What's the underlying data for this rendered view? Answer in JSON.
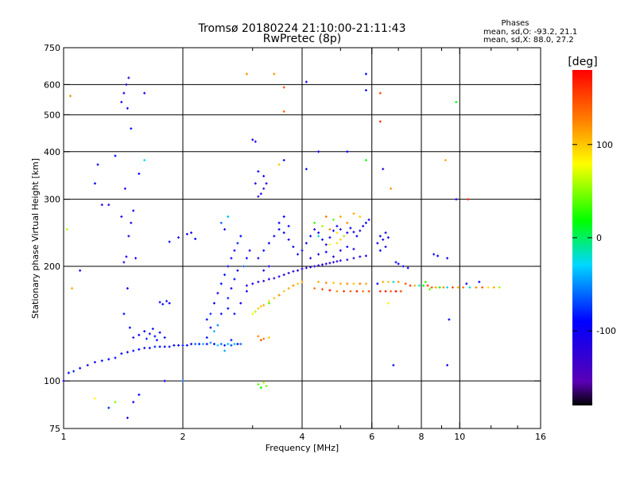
{
  "header": {
    "title_line1": "Tromsø 20180224 21:10:00-21:11:43",
    "title_line2": "RwPretec (8p)"
  },
  "stats": {
    "heading": "Phases",
    "line_o": "mean, sd,O:  -93.2, 21.1",
    "line_x": "mean, sd,X:  88.0, 27.2"
  },
  "colorbar": {
    "unit": "[deg]",
    "tick_labels": [
      "100",
      "0",
      "-100"
    ],
    "tick_values": [
      100,
      0,
      -100
    ],
    "range": [
      -180,
      180
    ],
    "palette": "rainbow (black-purple-blue-cyan-green-yellow-orange-red)"
  },
  "chart_data": {
    "type": "scatter",
    "xlabel": "Frequency [MHz]",
    "ylabel": "Stationary phase Virtual Height [km]",
    "xscale": "log",
    "yscale": "log",
    "xlim": [
      1,
      16
    ],
    "ylim": [
      75,
      750
    ],
    "x_ticks": [
      1,
      2,
      4,
      6,
      8,
      10,
      16
    ],
    "x_tick_labels": [
      "1",
      "2",
      "4",
      "6",
      "8",
      "10",
      "16"
    ],
    "x_minor_ticks": [
      3,
      5,
      7,
      9,
      12,
      14
    ],
    "x_grid": [
      2,
      4,
      6,
      8,
      10
    ],
    "y_ticks": [
      75,
      100,
      200,
      300,
      400,
      500,
      600,
      750
    ],
    "y_tick_labels": [
      "75",
      "100",
      "200",
      "300",
      "400",
      "500",
      "600",
      "750"
    ],
    "y_grid": [
      100,
      200,
      300,
      400,
      500,
      600
    ],
    "grid": true,
    "color_value": "phase [deg]",
    "points": [
      [
        1.03,
        105,
        -90
      ],
      [
        1.06,
        106,
        -80
      ],
      [
        1.1,
        108,
        -90
      ],
      [
        1.15,
        110,
        -95
      ],
      [
        1.2,
        112,
        -100
      ],
      [
        1.25,
        113,
        -85
      ],
      [
        1.3,
        114,
        -95
      ],
      [
        1.35,
        115,
        -100
      ],
      [
        1.4,
        118,
        -90
      ],
      [
        1.45,
        119,
        -95
      ],
      [
        1.5,
        120,
        -85
      ],
      [
        1.55,
        121,
        -95
      ],
      [
        1.6,
        122,
        -100
      ],
      [
        1.65,
        122,
        -90
      ],
      [
        1.7,
        123,
        -80
      ],
      [
        1.75,
        123,
        -95
      ],
      [
        1.8,
        123,
        -100
      ],
      [
        1.85,
        123,
        -85
      ],
      [
        1.9,
        124,
        -95
      ],
      [
        1.95,
        124,
        -90
      ],
      [
        2.0,
        124,
        -80
      ],
      [
        2.05,
        124,
        -100
      ],
      [
        2.1,
        125,
        -90
      ],
      [
        2.15,
        125,
        -60
      ],
      [
        2.2,
        125,
        -85
      ],
      [
        2.25,
        125,
        -40
      ],
      [
        2.3,
        125,
        -95
      ],
      [
        2.35,
        126,
        -50
      ],
      [
        2.4,
        125,
        -90
      ],
      [
        2.45,
        124,
        -30
      ],
      [
        2.5,
        125,
        -60
      ],
      [
        2.55,
        124,
        -80
      ],
      [
        2.6,
        125,
        -40
      ],
      [
        2.65,
        124,
        -70
      ],
      [
        2.7,
        125,
        -35
      ],
      [
        2.75,
        125,
        -90
      ],
      [
        2.8,
        125,
        -60
      ],
      [
        1.5,
        130,
        -100
      ],
      [
        1.55,
        132,
        -95
      ],
      [
        1.6,
        135,
        -90
      ],
      [
        1.65,
        133,
        -100
      ],
      [
        1.7,
        131,
        -85
      ],
      [
        1.75,
        134,
        -95
      ],
      [
        1.8,
        130,
        -90
      ],
      [
        1.68,
        137,
        -100
      ],
      [
        1.72,
        128,
        -95
      ],
      [
        1.62,
        129,
        -80
      ],
      [
        1.75,
        161,
        -95
      ],
      [
        1.78,
        159,
        -90
      ],
      [
        1.82,
        162,
        -100
      ],
      [
        1.85,
        160,
        -95
      ],
      [
        1.42,
        205,
        -110
      ],
      [
        1.44,
        212,
        -105
      ],
      [
        1.46,
        240,
        -120
      ],
      [
        1.4,
        270,
        -110
      ],
      [
        1.45,
        175,
        -100
      ],
      [
        1.42,
        150,
        -90
      ],
      [
        1.47,
        138,
        -95
      ],
      [
        1.43,
        320,
        -100
      ],
      [
        1.48,
        260,
        -115
      ],
      [
        1.4,
        540,
        -110
      ],
      [
        1.42,
        570,
        -100
      ],
      [
        1.44,
        600,
        -120
      ],
      [
        1.46,
        625,
        -110
      ],
      [
        1.45,
        520,
        -100
      ],
      [
        1.2,
        330,
        -90
      ],
      [
        1.25,
        290,
        -100
      ],
      [
        1.22,
        370,
        -95
      ],
      [
        1.3,
        290,
        -110
      ],
      [
        1.35,
        390,
        -90
      ],
      [
        1.5,
        280,
        -100
      ],
      [
        1.55,
        350,
        -90
      ],
      [
        1.52,
        210,
        -100
      ],
      [
        1.48,
        460,
        -90
      ],
      [
        1.6,
        380,
        -30
      ],
      [
        1.6,
        570,
        -100
      ],
      [
        1.1,
        195,
        -100
      ],
      [
        1.45,
        80,
        -110
      ],
      [
        1.5,
        88,
        -100
      ],
      [
        1.55,
        92,
        -90
      ],
      [
        1.3,
        85,
        -80
      ],
      [
        1.35,
        88,
        50
      ],
      [
        1.8,
        100,
        -100
      ],
      [
        2.0,
        100,
        -60
      ],
      [
        1.85,
        232,
        -90
      ],
      [
        1.95,
        238,
        -100
      ],
      [
        2.05,
        243,
        -95
      ],
      [
        2.1,
        245,
        -110
      ],
      [
        2.15,
        236,
        -90
      ],
      [
        2.3,
        145,
        -90
      ],
      [
        2.35,
        150,
        -80
      ],
      [
        2.4,
        160,
        -95
      ],
      [
        2.45,
        170,
        -100
      ],
      [
        2.5,
        180,
        -90
      ],
      [
        2.55,
        190,
        -85
      ],
      [
        2.6,
        200,
        -100
      ],
      [
        2.65,
        210,
        -95
      ],
      [
        2.7,
        220,
        -90
      ],
      [
        2.75,
        230,
        -80
      ],
      [
        2.8,
        240,
        -95
      ],
      [
        2.5,
        260,
        -60
      ],
      [
        2.6,
        270,
        -40
      ],
      [
        2.55,
        250,
        -100
      ],
      [
        2.45,
        140,
        -50
      ],
      [
        2.4,
        135,
        -40
      ],
      [
        2.6,
        155,
        -90
      ],
      [
        2.65,
        175,
        -95
      ],
      [
        2.7,
        185,
        -90
      ],
      [
        2.75,
        195,
        -100
      ],
      [
        2.85,
        200,
        -60
      ],
      [
        2.9,
        210,
        -90
      ],
      [
        2.95,
        220,
        -100
      ],
      [
        2.3,
        130,
        -90
      ],
      [
        2.35,
        138,
        -100
      ],
      [
        2.5,
        150,
        -95
      ],
      [
        2.6,
        165,
        -80
      ],
      [
        2.7,
        150,
        -90
      ],
      [
        2.8,
        160,
        -100
      ],
      [
        2.9,
        172,
        -95
      ],
      [
        2.55,
        120,
        -40
      ],
      [
        2.65,
        128,
        -90
      ],
      [
        2.9,
        178,
        -110
      ],
      [
        3.0,
        180,
        -115
      ],
      [
        3.1,
        182,
        -110
      ],
      [
        3.2,
        183,
        -120
      ],
      [
        3.3,
        185,
        -110
      ],
      [
        3.4,
        186,
        -115
      ],
      [
        3.5,
        188,
        -110
      ],
      [
        3.6,
        190,
        -120
      ],
      [
        3.7,
        192,
        -115
      ],
      [
        3.8,
        194,
        -110
      ],
      [
        3.9,
        195,
        -115
      ],
      [
        4.0,
        197,
        -110
      ],
      [
        4.1,
        198,
        -120
      ],
      [
        4.2,
        199,
        -115
      ],
      [
        4.3,
        200,
        -110
      ],
      [
        4.4,
        201,
        -120
      ],
      [
        4.5,
        202,
        -115
      ],
      [
        4.6,
        203,
        -110
      ],
      [
        4.7,
        204,
        -115
      ],
      [
        4.8,
        205,
        -120
      ],
      [
        4.9,
        206,
        -115
      ],
      [
        5.0,
        207,
        -110
      ],
      [
        5.2,
        208,
        -115
      ],
      [
        5.4,
        210,
        -120
      ],
      [
        5.6,
        212,
        -110
      ],
      [
        5.8,
        213,
        -115
      ],
      [
        3.1,
        210,
        -100
      ],
      [
        3.2,
        220,
        -90
      ],
      [
        3.3,
        230,
        -95
      ],
      [
        3.4,
        240,
        -100
      ],
      [
        3.5,
        250,
        -90
      ],
      [
        3.6,
        245,
        -95
      ],
      [
        3.7,
        235,
        -100
      ],
      [
        3.8,
        225,
        -90
      ],
      [
        3.9,
        215,
        -95
      ],
      [
        3.5,
        260,
        -100
      ],
      [
        3.6,
        270,
        -90
      ],
      [
        3.7,
        255,
        -95
      ],
      [
        3.3,
        200,
        -100
      ],
      [
        3.2,
        195,
        -110
      ],
      [
        4.0,
        220,
        -100
      ],
      [
        4.1,
        230,
        -95
      ],
      [
        4.2,
        240,
        -100
      ],
      [
        4.3,
        250,
        -110
      ],
      [
        4.4,
        245,
        -95
      ],
      [
        4.5,
        235,
        -90
      ],
      [
        4.6,
        228,
        -100
      ],
      [
        4.7,
        238,
        -95
      ],
      [
        4.8,
        248,
        -90
      ],
      [
        4.9,
        255,
        -100
      ],
      [
        5.0,
        250,
        -110
      ],
      [
        5.1,
        240,
        -95
      ],
      [
        5.2,
        245,
        -100
      ],
      [
        5.3,
        252,
        -90
      ],
      [
        5.4,
        246,
        -100
      ],
      [
        5.5,
        240,
        -95
      ],
      [
        5.6,
        248,
        -110
      ],
      [
        5.7,
        255,
        -100
      ],
      [
        5.8,
        260,
        -90
      ],
      [
        5.9,
        265,
        -100
      ],
      [
        4.2,
        210,
        -110
      ],
      [
        4.4,
        215,
        -100
      ],
      [
        4.6,
        218,
        -95
      ],
      [
        4.8,
        212,
        -110
      ],
      [
        5.0,
        220,
        -100
      ],
      [
        5.2,
        225,
        -95
      ],
      [
        5.4,
        222,
        -110
      ],
      [
        4.3,
        260,
        30
      ],
      [
        4.5,
        255,
        60
      ],
      [
        4.7,
        250,
        120
      ],
      [
        4.9,
        245,
        90
      ],
      [
        5.1,
        240,
        70
      ],
      [
        4.6,
        270,
        130
      ],
      [
        4.8,
        265,
        40
      ],
      [
        5.0,
        270,
        110
      ],
      [
        4.4,
        240,
        -20
      ],
      [
        4.9,
        230,
        90
      ],
      [
        5.2,
        260,
        120
      ],
      [
        5.4,
        275,
        110
      ],
      [
        5.6,
        270,
        100
      ],
      [
        4.7,
        228,
        80
      ],
      [
        5.0,
        235,
        100
      ],
      [
        6.2,
        230,
        -100
      ],
      [
        6.3,
        240,
        -90
      ],
      [
        6.4,
        235,
        -100
      ],
      [
        6.5,
        245,
        -110
      ],
      [
        6.6,
        238,
        -95
      ],
      [
        6.3,
        220,
        -90
      ],
      [
        6.5,
        225,
        -100
      ],
      [
        3.6,
        172,
        100
      ],
      [
        3.7,
        175,
        110
      ],
      [
        3.8,
        178,
        120
      ],
      [
        3.9,
        180,
        100
      ],
      [
        4.0,
        182,
        110
      ],
      [
        3.5,
        168,
        120
      ],
      [
        3.4,
        165,
        100
      ],
      [
        3.3,
        162,
        90
      ],
      [
        3.2,
        158,
        110
      ],
      [
        3.1,
        155,
        100
      ],
      [
        3.0,
        150,
        80
      ],
      [
        3.05,
        152,
        60
      ],
      [
        3.15,
        157,
        100
      ],
      [
        3.3,
        160,
        40
      ],
      [
        4.3,
        175,
        130
      ],
      [
        4.5,
        174,
        150
      ],
      [
        4.7,
        173,
        170
      ],
      [
        4.9,
        172,
        120
      ],
      [
        5.1,
        172,
        160
      ],
      [
        5.3,
        172,
        140
      ],
      [
        5.5,
        172,
        170
      ],
      [
        5.7,
        172,
        130
      ],
      [
        5.9,
        172,
        150
      ],
      [
        4.4,
        182,
        110
      ],
      [
        4.6,
        181,
        120
      ],
      [
        4.8,
        181,
        100
      ],
      [
        5.0,
        180,
        110
      ],
      [
        5.2,
        180,
        120
      ],
      [
        5.4,
        180,
        100
      ],
      [
        5.6,
        180,
        130
      ],
      [
        5.8,
        180,
        110
      ],
      [
        6.3,
        172,
        160
      ],
      [
        6.5,
        172,
        170
      ],
      [
        6.7,
        172,
        140
      ],
      [
        6.9,
        172,
        180
      ],
      [
        7.1,
        172,
        150
      ],
      [
        6.4,
        182,
        110
      ],
      [
        6.6,
        182,
        100
      ],
      [
        6.8,
        182,
        -20
      ],
      [
        7.0,
        182,
        120
      ],
      [
        7.3,
        180,
        140
      ],
      [
        7.5,
        178,
        160
      ],
      [
        7.7,
        178,
        110
      ],
      [
        7.9,
        178,
        -10
      ],
      [
        8.1,
        178,
        20
      ],
      [
        8.3,
        178,
        160
      ],
      [
        8.5,
        176,
        140
      ],
      [
        8.7,
        176,
        110
      ],
      [
        8.9,
        176,
        20
      ],
      [
        9.1,
        176,
        120
      ],
      [
        9.3,
        176,
        -30
      ],
      [
        9.6,
        176,
        150
      ],
      [
        9.9,
        176,
        110
      ],
      [
        10.2,
        176,
        130
      ],
      [
        10.6,
        176,
        -20
      ],
      [
        11.0,
        176,
        120
      ],
      [
        11.4,
        176,
        140
      ],
      [
        11.8,
        176,
        90
      ],
      [
        12.2,
        176,
        110
      ],
      [
        12.6,
        176,
        60
      ],
      [
        10.4,
        180,
        -100
      ],
      [
        11.2,
        182,
        -90
      ],
      [
        8.2,
        182,
        30
      ],
      [
        8.4,
        174,
        40
      ],
      [
        3.1,
        131,
        120
      ],
      [
        3.2,
        129,
        130
      ],
      [
        3.3,
        130,
        100
      ],
      [
        3.15,
        128,
        150
      ],
      [
        3.1,
        98,
        40
      ],
      [
        3.2,
        99,
        60
      ],
      [
        3.15,
        96,
        20
      ],
      [
        3.25,
        97,
        50
      ],
      [
        3.1,
        305,
        -110
      ],
      [
        3.15,
        310,
        -100
      ],
      [
        3.2,
        320,
        -120
      ],
      [
        3.25,
        330,
        -110
      ],
      [
        3.2,
        345,
        -100
      ],
      [
        3.05,
        330,
        -110
      ],
      [
        3.1,
        355,
        -100
      ],
      [
        3.0,
        430,
        -110
      ],
      [
        3.05,
        425,
        -120
      ],
      [
        3.5,
        370,
        100
      ],
      [
        3.6,
        380,
        -100
      ],
      [
        4.1,
        360,
        -90
      ],
      [
        4.4,
        400,
        -100
      ],
      [
        5.2,
        400,
        -90
      ],
      [
        5.8,
        380,
        20
      ],
      [
        6.7,
        320,
        120
      ],
      [
        6.4,
        360,
        -110
      ],
      [
        3.6,
        590,
        150
      ],
      [
        3.4,
        640,
        120
      ],
      [
        3.6,
        510,
        140
      ],
      [
        4.1,
        610,
        -100
      ],
      [
        5.8,
        640,
        -90
      ],
      [
        5.8,
        580,
        -100
      ],
      [
        6.3,
        570,
        150
      ],
      [
        6.3,
        480,
        160
      ],
      [
        9.8,
        540,
        20
      ],
      [
        9.2,
        380,
        110
      ],
      [
        9.8,
        300,
        -100
      ],
      [
        10.5,
        300,
        170
      ],
      [
        2.9,
        640,
        120
      ],
      [
        6.9,
        205,
        -100
      ],
      [
        7.0,
        203,
        -90
      ],
      [
        7.2,
        200,
        -100
      ],
      [
        7.4,
        198,
        -110
      ],
      [
        8.6,
        215,
        -100
      ],
      [
        8.8,
        213,
        -90
      ],
      [
        9.3,
        210,
        -100
      ],
      [
        9.4,
        145,
        -90
      ],
      [
        9.3,
        110,
        -100
      ],
      [
        6.8,
        110,
        -90
      ],
      [
        6.6,
        160,
        80
      ],
      [
        6.2,
        180,
        -100
      ],
      [
        1.05,
        175,
        110
      ],
      [
        1.02,
        250,
        60
      ],
      [
        1.04,
        560,
        120
      ],
      [
        1.2,
        90,
        80
      ],
      [
        1.0,
        100,
        -100
      ]
    ]
  }
}
